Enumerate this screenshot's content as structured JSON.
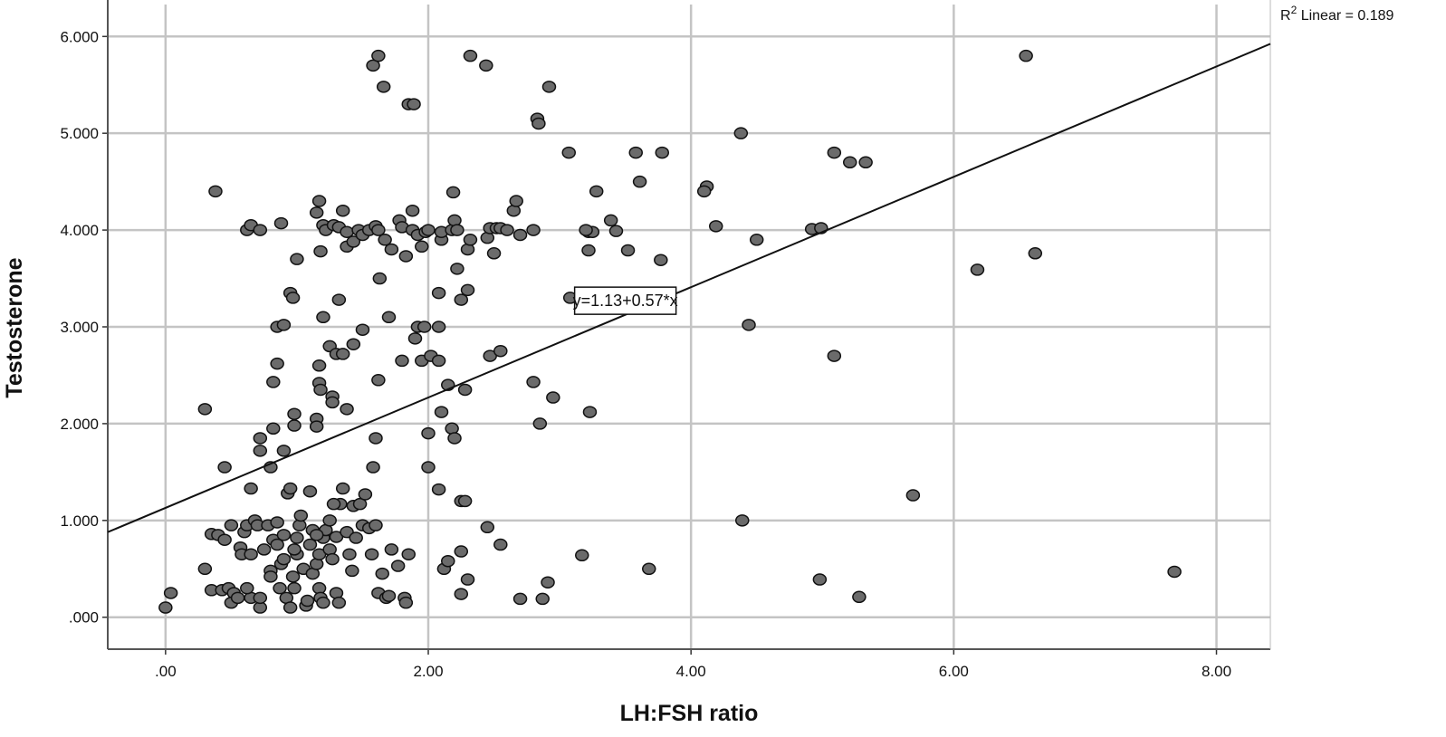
{
  "chart_data": {
    "type": "scatter",
    "title": "",
    "xlabel": "LH:FSH ratio",
    "ylabel": "Testosterone",
    "xlim": [
      -0.44,
      8.41
    ],
    "ylim": [
      -0.33,
      6.33
    ],
    "xticks": [
      0,
      2,
      4,
      6,
      8
    ],
    "xtick_labels": [
      ".00",
      "2.00",
      "4.00",
      "6.00",
      "8.00"
    ],
    "yticks": [
      0,
      1,
      2,
      3,
      4,
      5,
      6
    ],
    "ytick_labels": [
      ".000",
      "1.000",
      "2.000",
      "3.000",
      "4.000",
      "5.000",
      "6.000"
    ],
    "grid": true,
    "fit_line": {
      "intercept": 1.13,
      "slope": 0.57,
      "label": "y=1.13+0.57*x",
      "label_at": [
        3.5,
        3.27
      ]
    },
    "r2_label": {
      "prefix": "R",
      "sup": "2",
      "text": " Linear = 0.189"
    },
    "colors": {
      "point_fill": "#6b6b6b",
      "point_stroke": "#111111",
      "grid": "#c4c4c4",
      "line": "#111111"
    },
    "points": [
      [
        1.58,
        5.7
      ],
      [
        1.62,
        5.8
      ],
      [
        1.66,
        5.48
      ],
      [
        1.85,
        5.3
      ],
      [
        1.89,
        5.3
      ],
      [
        2.32,
        5.8
      ],
      [
        2.44,
        5.7
      ],
      [
        2.92,
        5.48
      ],
      [
        2.83,
        5.15
      ],
      [
        2.84,
        5.1
      ],
      [
        3.07,
        4.8
      ],
      [
        3.58,
        4.8
      ],
      [
        3.78,
        4.8
      ],
      [
        3.61,
        4.5
      ],
      [
        4.38,
        5.0
      ],
      [
        6.55,
        5.8
      ],
      [
        5.09,
        4.8
      ],
      [
        5.21,
        4.7
      ],
      [
        5.33,
        4.7
      ],
      [
        4.12,
        4.45
      ],
      [
        4.1,
        4.4
      ],
      [
        4.19,
        4.04
      ],
      [
        4.5,
        3.9
      ],
      [
        4.92,
        4.01
      ],
      [
        4.99,
        4.02
      ],
      [
        6.18,
        3.59
      ],
      [
        6.62,
        3.76
      ],
      [
        4.44,
        3.02
      ],
      [
        5.09,
        2.7
      ],
      [
        5.69,
        1.26
      ],
      [
        4.39,
        1.0
      ],
      [
        4.98,
        0.39
      ],
      [
        5.28,
        0.21
      ],
      [
        7.68,
        0.47
      ],
      [
        3.68,
        0.5
      ],
      [
        3.17,
        0.64
      ],
      [
        2.91,
        0.36
      ],
      [
        2.87,
        0.19
      ],
      [
        2.7,
        0.19
      ],
      [
        3.28,
        4.4
      ],
      [
        3.22,
        3.98
      ],
      [
        3.22,
        3.79
      ],
      [
        3.39,
        4.1
      ],
      [
        3.43,
        3.99
      ],
      [
        3.52,
        3.79
      ],
      [
        3.77,
        3.69
      ],
      [
        3.08,
        3.3
      ],
      [
        3.31,
        3.2
      ],
      [
        3.43,
        3.28
      ],
      [
        3.23,
        2.12
      ],
      [
        2.95,
        2.27
      ],
      [
        2.8,
        2.43
      ],
      [
        2.85,
        2.0
      ],
      [
        0.0,
        0.1
      ],
      [
        0.04,
        0.25
      ],
      [
        0.3,
        0.5
      ],
      [
        0.35,
        0.28
      ],
      [
        0.35,
        0.86
      ],
      [
        0.4,
        0.85
      ],
      [
        0.45,
        0.8
      ],
      [
        0.43,
        0.28
      ],
      [
        0.48,
        0.3
      ],
      [
        0.5,
        0.95
      ],
      [
        0.52,
        0.25
      ],
      [
        0.5,
        0.15
      ],
      [
        0.55,
        0.2
      ],
      [
        0.57,
        0.72
      ],
      [
        0.58,
        0.65
      ],
      [
        0.6,
        0.88
      ],
      [
        0.62,
        0.95
      ],
      [
        0.65,
        0.2
      ],
      [
        0.65,
        0.65
      ],
      [
        0.68,
        1.0
      ],
      [
        0.7,
        0.95
      ],
      [
        0.72,
        0.1
      ],
      [
        0.72,
        0.2
      ],
      [
        0.75,
        0.7
      ],
      [
        0.78,
        0.95
      ],
      [
        0.8,
        0.48
      ],
      [
        0.8,
        0.42
      ],
      [
        0.82,
        0.8
      ],
      [
        0.85,
        0.75
      ],
      [
        0.87,
        0.3
      ],
      [
        0.88,
        0.55
      ],
      [
        0.9,
        0.6
      ],
      [
        0.9,
        0.85
      ],
      [
        0.92,
        0.2
      ],
      [
        0.93,
        1.28
      ],
      [
        0.95,
        1.33
      ],
      [
        0.97,
        0.42
      ],
      [
        0.98,
        0.3
      ],
      [
        1.0,
        0.65
      ],
      [
        1.0,
        0.82
      ],
      [
        1.02,
        0.95
      ],
      [
        1.03,
        1.05
      ],
      [
        1.05,
        0.5
      ],
      [
        1.07,
        0.12
      ],
      [
        1.08,
        0.17
      ],
      [
        1.1,
        0.75
      ],
      [
        1.12,
        0.9
      ],
      [
        1.12,
        0.45
      ],
      [
        1.15,
        0.55
      ],
      [
        1.17,
        0.65
      ],
      [
        1.17,
        0.3
      ],
      [
        1.18,
        0.2
      ],
      [
        1.2,
        0.82
      ],
      [
        1.2,
        0.15
      ],
      [
        1.22,
        0.9
      ],
      [
        1.25,
        0.7
      ],
      [
        1.27,
        0.6
      ],
      [
        1.3,
        0.83
      ],
      [
        1.3,
        0.25
      ],
      [
        1.32,
        0.15
      ],
      [
        1.33,
        1.17
      ],
      [
        1.35,
        1.33
      ],
      [
        1.38,
        0.88
      ],
      [
        1.4,
        0.65
      ],
      [
        1.42,
        0.48
      ],
      [
        1.43,
        1.15
      ],
      [
        1.45,
        0.82
      ],
      [
        1.48,
        1.17
      ],
      [
        1.5,
        0.95
      ],
      [
        1.52,
        1.27
      ],
      [
        1.55,
        0.92
      ],
      [
        1.57,
        0.65
      ],
      [
        1.6,
        0.95
      ],
      [
        1.62,
        0.25
      ],
      [
        1.65,
        0.45
      ],
      [
        1.68,
        0.2
      ],
      [
        1.7,
        0.22
      ],
      [
        1.72,
        0.7
      ],
      [
        1.77,
        0.53
      ],
      [
        1.82,
        0.2
      ],
      [
        1.85,
        0.65
      ],
      [
        1.83,
        0.15
      ],
      [
        2.12,
        0.5
      ],
      [
        2.15,
        0.58
      ],
      [
        2.25,
        0.24
      ],
      [
        2.25,
        0.68
      ],
      [
        2.3,
        0.39
      ],
      [
        2.08,
        1.32
      ],
      [
        2.25,
        1.2
      ],
      [
        2.28,
        1.2
      ],
      [
        2.45,
        0.93
      ],
      [
        2.55,
        0.75
      ],
      [
        0.85,
        0.98
      ],
      [
        0.62,
        0.3
      ],
      [
        0.95,
        0.1
      ],
      [
        1.25,
        1.0
      ],
      [
        1.1,
        1.3
      ],
      [
        1.28,
        1.17
      ],
      [
        1.15,
        0.85
      ],
      [
        0.98,
        0.7
      ],
      [
        0.3,
        2.15
      ],
      [
        0.45,
        1.55
      ],
      [
        0.65,
        1.33
      ],
      [
        0.72,
        1.72
      ],
      [
        0.72,
        1.85
      ],
      [
        0.8,
        1.55
      ],
      [
        0.82,
        1.95
      ],
      [
        0.82,
        2.43
      ],
      [
        0.85,
        2.62
      ],
      [
        0.85,
        3.0
      ],
      [
        0.9,
        3.02
      ],
      [
        0.9,
        1.72
      ],
      [
        0.95,
        3.35
      ],
      [
        0.97,
        3.3
      ],
      [
        0.98,
        2.1
      ],
      [
        0.98,
        1.98
      ],
      [
        1.15,
        2.05
      ],
      [
        1.15,
        1.97
      ],
      [
        1.17,
        2.42
      ],
      [
        1.17,
        2.6
      ],
      [
        1.18,
        2.35
      ],
      [
        1.2,
        3.1
      ],
      [
        1.25,
        2.8
      ],
      [
        1.27,
        2.28
      ],
      [
        1.27,
        2.22
      ],
      [
        1.3,
        2.72
      ],
      [
        1.32,
        3.28
      ],
      [
        1.35,
        2.72
      ],
      [
        1.38,
        2.15
      ],
      [
        1.43,
        2.82
      ],
      [
        1.5,
        2.97
      ],
      [
        1.58,
        1.55
      ],
      [
        1.6,
        1.85
      ],
      [
        1.62,
        2.45
      ],
      [
        1.63,
        3.5
      ],
      [
        1.7,
        3.1
      ],
      [
        1.8,
        2.65
      ],
      [
        1.9,
        2.88
      ],
      [
        1.92,
        3.0
      ],
      [
        1.95,
        2.65
      ],
      [
        1.97,
        3.0
      ],
      [
        2.0,
        1.9
      ],
      [
        2.0,
        1.55
      ],
      [
        2.02,
        2.7
      ],
      [
        2.08,
        2.65
      ],
      [
        2.08,
        3.0
      ],
      [
        2.08,
        3.35
      ],
      [
        2.1,
        2.12
      ],
      [
        2.15,
        2.4
      ],
      [
        2.18,
        1.95
      ],
      [
        2.2,
        1.85
      ],
      [
        2.22,
        3.6
      ],
      [
        2.25,
        3.28
      ],
      [
        2.28,
        2.35
      ],
      [
        2.3,
        3.38
      ],
      [
        2.47,
        2.7
      ],
      [
        2.55,
        2.75
      ],
      [
        0.38,
        4.4
      ],
      [
        0.62,
        4.0
      ],
      [
        0.65,
        4.05
      ],
      [
        0.72,
        4.0
      ],
      [
        0.88,
        4.07
      ],
      [
        1.0,
        3.7
      ],
      [
        1.15,
        4.18
      ],
      [
        1.17,
        4.3
      ],
      [
        1.18,
        3.78
      ],
      [
        1.2,
        4.05
      ],
      [
        1.22,
        4.0
      ],
      [
        1.28,
        4.05
      ],
      [
        1.32,
        4.03
      ],
      [
        1.35,
        4.2
      ],
      [
        1.38,
        3.98
      ],
      [
        1.38,
        3.83
      ],
      [
        1.43,
        3.88
      ],
      [
        1.47,
        4.0
      ],
      [
        1.5,
        3.95
      ],
      [
        1.55,
        4.0
      ],
      [
        1.6,
        4.04
      ],
      [
        1.62,
        4.0
      ],
      [
        1.67,
        3.9
      ],
      [
        1.72,
        3.8
      ],
      [
        1.78,
        4.1
      ],
      [
        1.8,
        4.03
      ],
      [
        1.83,
        3.73
      ],
      [
        1.88,
        4.2
      ],
      [
        1.88,
        4.0
      ],
      [
        1.92,
        3.95
      ],
      [
        1.95,
        3.83
      ],
      [
        1.98,
        3.98
      ],
      [
        2.0,
        4.0
      ],
      [
        2.1,
        3.9
      ],
      [
        2.1,
        3.98
      ],
      [
        2.18,
        4.0
      ],
      [
        2.2,
        4.1
      ],
      [
        2.22,
        4.0
      ],
      [
        2.3,
        3.8
      ],
      [
        2.32,
        3.9
      ],
      [
        2.45,
        3.92
      ],
      [
        2.47,
        4.02
      ],
      [
        2.5,
        3.76
      ],
      [
        2.52,
        4.02
      ],
      [
        2.55,
        4.02
      ],
      [
        2.6,
        4.0
      ],
      [
        2.65,
        4.2
      ],
      [
        2.67,
        4.3
      ],
      [
        2.7,
        3.95
      ],
      [
        2.8,
        4.0
      ],
      [
        3.25,
        3.98
      ],
      [
        3.2,
        4.0
      ],
      [
        2.19,
        4.39
      ]
    ]
  }
}
